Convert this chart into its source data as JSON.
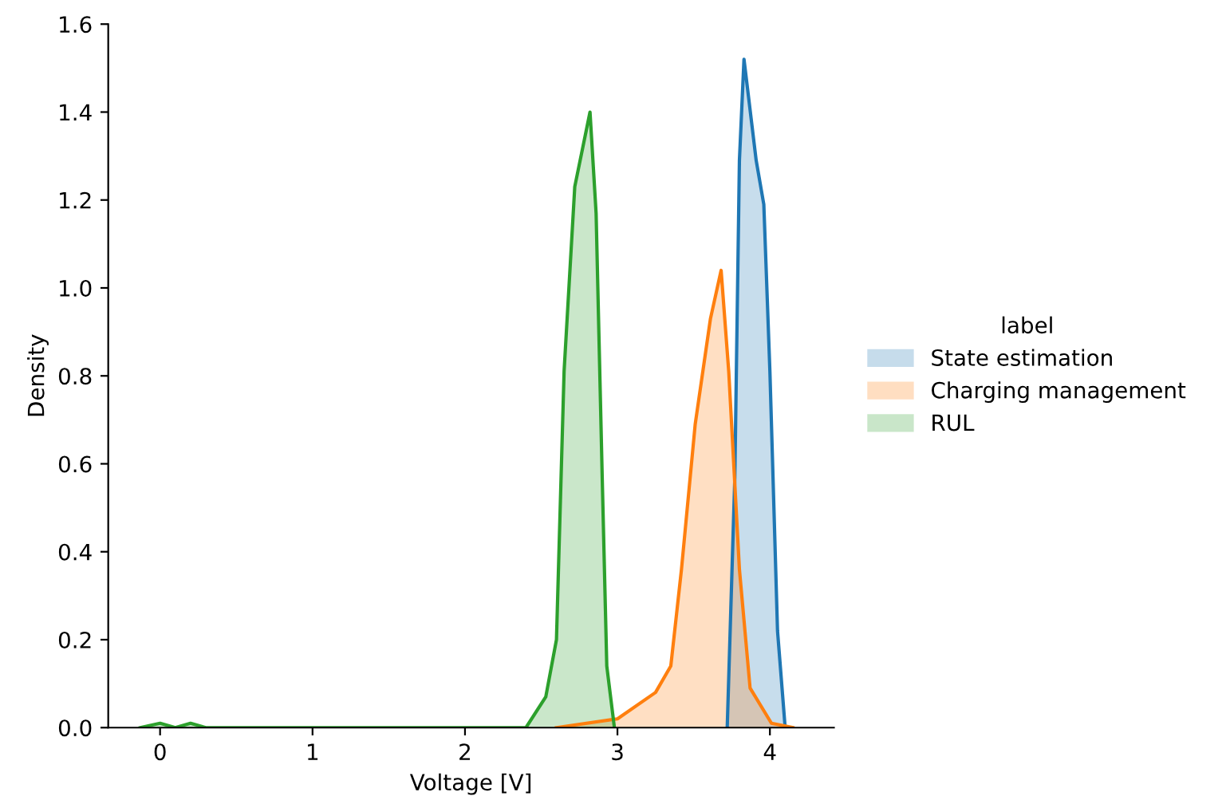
{
  "chart_data": {
    "type": "area",
    "xlabel": "Voltage [V]",
    "ylabel": "Density",
    "legend_title": "label",
    "legend": "right",
    "grid": false,
    "xlim": [
      -0.34,
      4.42
    ],
    "xticks": [
      0,
      1,
      2,
      3,
      4
    ],
    "ylim": [
      0,
      1.6
    ],
    "yticks": [
      {
        "value": 0,
        "label": "0.0"
      },
      0.2,
      0.4,
      0.6,
      0.8,
      {
        "value": 1,
        "label": "1.0"
      },
      1.2,
      1.4,
      1.6
    ],
    "series": [
      {
        "name": "State estimation",
        "color": "#1f77b4",
        "x": [
          3.72,
          3.77,
          3.8,
          3.83,
          3.91,
          3.96,
          4.0,
          4.05,
          4.1
        ],
        "values": [
          0,
          0.57,
          1.29,
          1.52,
          1.29,
          1.19,
          0.81,
          0.22,
          0
        ]
      },
      {
        "name": "Charging management",
        "color": "#ff7f0e",
        "x": [
          2.6,
          3.0,
          3.25,
          3.35,
          3.42,
          3.51,
          3.61,
          3.68,
          3.73,
          3.8,
          3.87,
          4.01,
          4.15
        ],
        "values": [
          0,
          0.02,
          0.08,
          0.14,
          0.36,
          0.69,
          0.93,
          1.04,
          0.81,
          0.36,
          0.09,
          0.01,
          0
        ]
      },
      {
        "name": "RUL",
        "color": "#2ca02c",
        "x": [
          -0.13,
          0.0,
          0.1,
          0.2,
          0.3,
          2.4,
          2.53,
          2.6,
          2.65,
          2.72,
          2.82,
          2.86,
          2.9,
          2.93,
          2.98
        ],
        "values": [
          0,
          0.01,
          0,
          0.01,
          0,
          0,
          0.07,
          0.2,
          0.81,
          1.23,
          1.4,
          1.17,
          0.57,
          0.14,
          0
        ]
      }
    ]
  }
}
